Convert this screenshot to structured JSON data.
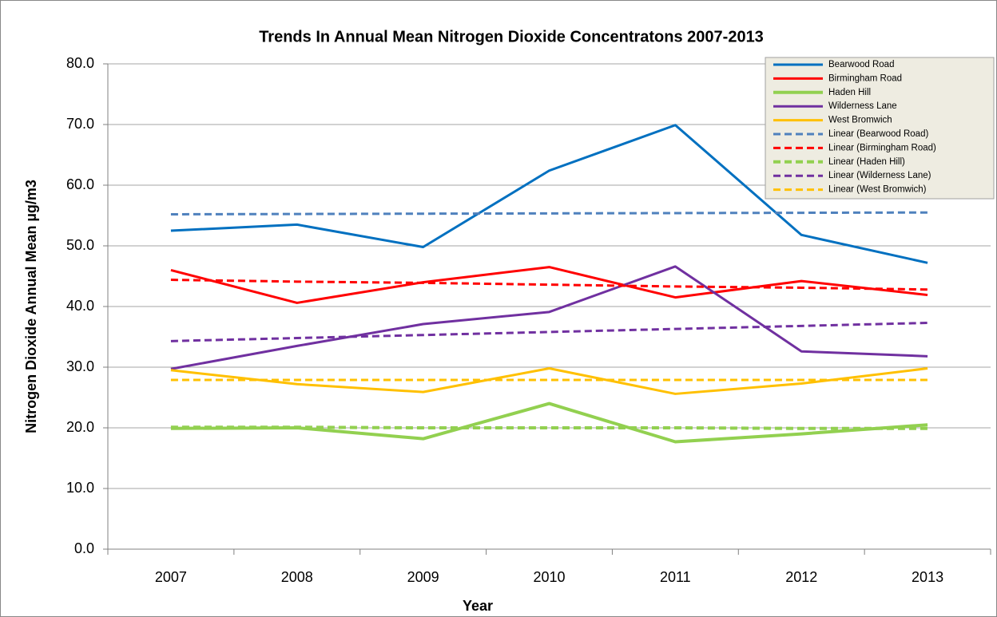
{
  "chart_data": {
    "type": "line",
    "title": "Trends In Annual Mean Nitrogen Dioxide Concentratons 2007-2013",
    "x_label": "Year",
    "y_label": "Nitrogen Dioxide Annual Mean µg/m3",
    "categories": [
      "2007",
      "2008",
      "2009",
      "2010",
      "2011",
      "2012",
      "2013"
    ],
    "ylim": [
      0,
      80
    ],
    "yticks": [
      {
        "value": 0,
        "label": "0.0"
      },
      {
        "value": 10,
        "label": "10.0"
      },
      {
        "value": 20,
        "label": "20.0"
      },
      {
        "value": 30,
        "label": "30.0"
      },
      {
        "value": 40,
        "label": "40.0"
      },
      {
        "value": 50,
        "label": "50.0"
      },
      {
        "value": 60,
        "label": "60.0"
      },
      {
        "value": 70,
        "label": "70.0"
      },
      {
        "value": 80,
        "label": "80.0"
      }
    ],
    "grid": true,
    "legend": "upper right",
    "series": [
      {
        "name": "Bearwood Road",
        "color": "#0070c0",
        "dashed": false,
        "values": [
          52.5,
          53.5,
          49.8,
          62.4,
          69.9,
          51.8,
          47.2
        ]
      },
      {
        "name": "Birmingham Road",
        "color": "#ff0000",
        "dashed": false,
        "values": [
          46.0,
          40.6,
          44.0,
          46.5,
          41.5,
          44.2,
          41.9
        ]
      },
      {
        "name": "Haden Hill",
        "color": "#92d050",
        "dashed": false,
        "values": [
          19.9,
          20.0,
          18.2,
          24.0,
          17.7,
          19.0,
          20.5
        ]
      },
      {
        "name": "Wilderness Lane",
        "color": "#7030a0",
        "dashed": false,
        "values": [
          29.7,
          33.5,
          37.1,
          39.1,
          46.6,
          32.6,
          31.8
        ]
      },
      {
        "name": "West Bromwich",
        "color": "#ffc000",
        "dashed": false,
        "values": [
          29.5,
          27.2,
          25.9,
          29.8,
          25.6,
          27.3,
          29.8
        ]
      },
      {
        "name": "Linear (Bearwood Road)",
        "color": "#4f81bd",
        "dashed": true,
        "values": [
          55.2,
          55.25,
          55.3,
          55.35,
          55.4,
          55.45,
          55.5
        ]
      },
      {
        "name": "Linear (Birmingham Road)",
        "color": "#ff0000",
        "dashed": true,
        "values": [
          44.4,
          44.1,
          43.9,
          43.6,
          43.3,
          43.1,
          42.8
        ]
      },
      {
        "name": "Linear (Haden Hill)",
        "color": "#92d050",
        "dashed": true,
        "values": [
          20.1,
          20.1,
          20.0,
          20.0,
          20.0,
          19.9,
          19.9
        ]
      },
      {
        "name": "Linear (Wilderness Lane)",
        "color": "#7030a0",
        "dashed": true,
        "values": [
          34.3,
          34.8,
          35.3,
          35.8,
          36.3,
          36.8,
          37.3
        ]
      },
      {
        "name": "Linear (West Bromwich)",
        "color": "#ffc000",
        "dashed": true,
        "values": [
          27.9,
          27.9,
          27.9,
          27.9,
          27.9,
          27.9,
          27.9
        ]
      }
    ]
  }
}
